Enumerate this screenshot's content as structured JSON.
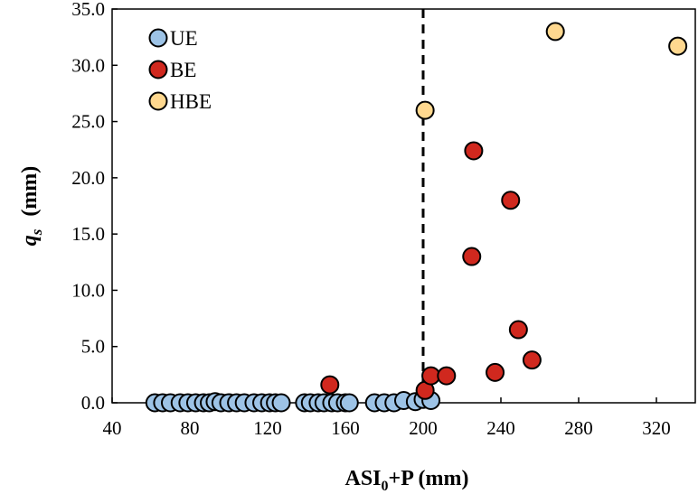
{
  "chart_data": {
    "type": "scatter",
    "xlabel": {
      "main": "ASI",
      "sub": "0",
      "rest": "+P (mm)"
    },
    "ylabel": {
      "var": "q",
      "sub": "s",
      "unit": "(mm)"
    },
    "xlim": [
      40,
      340
    ],
    "ylim": [
      0,
      35
    ],
    "x_ticks": [
      "40",
      "80",
      "120",
      "160",
      "200",
      "240",
      "280",
      "320"
    ],
    "y_ticks": [
      "0.0",
      "5.0",
      "10.0",
      "15.0",
      "20.0",
      "25.0",
      "30.0",
      "35.0"
    ],
    "grid": false,
    "legend_position": "top-left",
    "threshold_x": 200,
    "series": [
      {
        "name": "UE",
        "color": "#9dc3e6",
        "points": [
          {
            "x": 62,
            "y": 0.0
          },
          {
            "x": 66,
            "y": 0.0
          },
          {
            "x": 70,
            "y": 0.0
          },
          {
            "x": 75,
            "y": 0.0
          },
          {
            "x": 79,
            "y": 0.0
          },
          {
            "x": 83,
            "y": 0.0
          },
          {
            "x": 87,
            "y": 0.0
          },
          {
            "x": 90,
            "y": 0.0
          },
          {
            "x": 93,
            "y": 0.1
          },
          {
            "x": 96,
            "y": 0.0
          },
          {
            "x": 100,
            "y": 0.0
          },
          {
            "x": 104,
            "y": 0.0
          },
          {
            "x": 108,
            "y": 0.0
          },
          {
            "x": 113,
            "y": 0.0
          },
          {
            "x": 117,
            "y": 0.0
          },
          {
            "x": 121,
            "y": 0.0
          },
          {
            "x": 124,
            "y": 0.0
          },
          {
            "x": 127,
            "y": 0.0
          },
          {
            "x": 139,
            "y": 0.0
          },
          {
            "x": 142,
            "y": 0.0
          },
          {
            "x": 146,
            "y": 0.0
          },
          {
            "x": 149,
            "y": 0.0
          },
          {
            "x": 153,
            "y": 0.0
          },
          {
            "x": 156,
            "y": 0.0
          },
          {
            "x": 160,
            "y": 0.0
          },
          {
            "x": 162,
            "y": 0.0
          },
          {
            "x": 175,
            "y": 0.0
          },
          {
            "x": 180,
            "y": 0.0
          },
          {
            "x": 185,
            "y": 0.0
          },
          {
            "x": 190,
            "y": 0.2
          },
          {
            "x": 196,
            "y": 0.1
          },
          {
            "x": 200,
            "y": 0.3
          },
          {
            "x": 204,
            "y": 0.2
          }
        ]
      },
      {
        "name": "BE",
        "color": "#d0281e",
        "points": [
          {
            "x": 152,
            "y": 1.6
          },
          {
            "x": 201,
            "y": 1.1
          },
          {
            "x": 204,
            "y": 2.4
          },
          {
            "x": 212,
            "y": 2.4
          },
          {
            "x": 225,
            "y": 13.0
          },
          {
            "x": 226,
            "y": 22.4
          },
          {
            "x": 237,
            "y": 2.7
          },
          {
            "x": 245,
            "y": 18.0
          },
          {
            "x": 249,
            "y": 6.5
          },
          {
            "x": 256,
            "y": 3.8
          }
        ]
      },
      {
        "name": "HBE",
        "color": "#ffd88f",
        "points": [
          {
            "x": 201,
            "y": 26.0
          },
          {
            "x": 268,
            "y": 33.0
          },
          {
            "x": 331,
            "y": 31.7
          }
        ]
      }
    ]
  }
}
